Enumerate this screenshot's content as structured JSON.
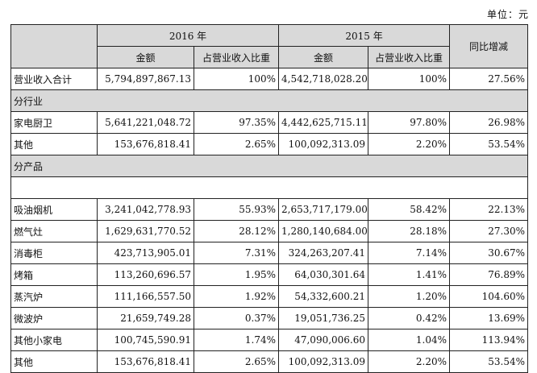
{
  "unit_label": "单位：元",
  "headers": {
    "year_2016": "2016 年",
    "year_2015": "2015 年",
    "amount": "金额",
    "ratio": "占营业收入比重",
    "yoy": "同比增减"
  },
  "total_row": {
    "label": "营业收入合计",
    "a2016": "5,794,897,867.13",
    "r2016": "100%",
    "a2015": "4,542,718,028.20",
    "r2015": "100%",
    "yoy": "27.56%"
  },
  "section_industry": "分行业",
  "industry_rows": [
    {
      "label": "家电厨卫",
      "a2016": "5,641,221,048.72",
      "r2016": "97.35%",
      "a2015": "4,442,625,715.11",
      "r2015": "97.80%",
      "yoy": "26.98%"
    },
    {
      "label": "其他",
      "a2016": "153,676,818.41",
      "r2016": "2.65%",
      "a2015": "100,092,313.09",
      "r2015": "2.20%",
      "yoy": "53.54%"
    }
  ],
  "section_product": "分产品",
  "product_rows": [
    {
      "label": "吸油烟机",
      "a2016": "3,241,042,778.93",
      "r2016": "55.93%",
      "a2015": "2,653,717,179.00",
      "r2015": "58.42%",
      "yoy": "22.13%"
    },
    {
      "label": "燃气灶",
      "a2016": "1,629,631,770.52",
      "r2016": "28.12%",
      "a2015": "1,280,140,684.00",
      "r2015": "28.18%",
      "yoy": "27.30%"
    },
    {
      "label": "消毒柜",
      "a2016": "423,713,905.01",
      "r2016": "7.31%",
      "a2015": "324,263,207.41",
      "r2015": "7.14%",
      "yoy": "30.67%"
    },
    {
      "label": "烤箱",
      "a2016": "113,260,696.57",
      "r2016": "1.95%",
      "a2015": "64,030,301.64",
      "r2015": "1.41%",
      "yoy": "76.89%"
    },
    {
      "label": "蒸汽炉",
      "a2016": "111,166,557.50",
      "r2016": "1.92%",
      "a2015": "54,332,600.21",
      "r2015": "1.20%",
      "yoy": "104.60%"
    },
    {
      "label": "微波炉",
      "a2016": "21,659,749.28",
      "r2016": "0.37%",
      "a2015": "19,051,736.25",
      "r2015": "0.42%",
      "yoy": "13.69%"
    },
    {
      "label": "其他小家电",
      "a2016": "100,745,590.91",
      "r2016": "1.74%",
      "a2015": "47,090,006.60",
      "r2015": "1.04%",
      "yoy": "113.94%"
    },
    {
      "label": "其他",
      "a2016": "153,676,818.41",
      "r2016": "2.65%",
      "a2015": "100,092,313.09",
      "r2015": "2.20%",
      "yoy": "53.54%"
    }
  ]
}
